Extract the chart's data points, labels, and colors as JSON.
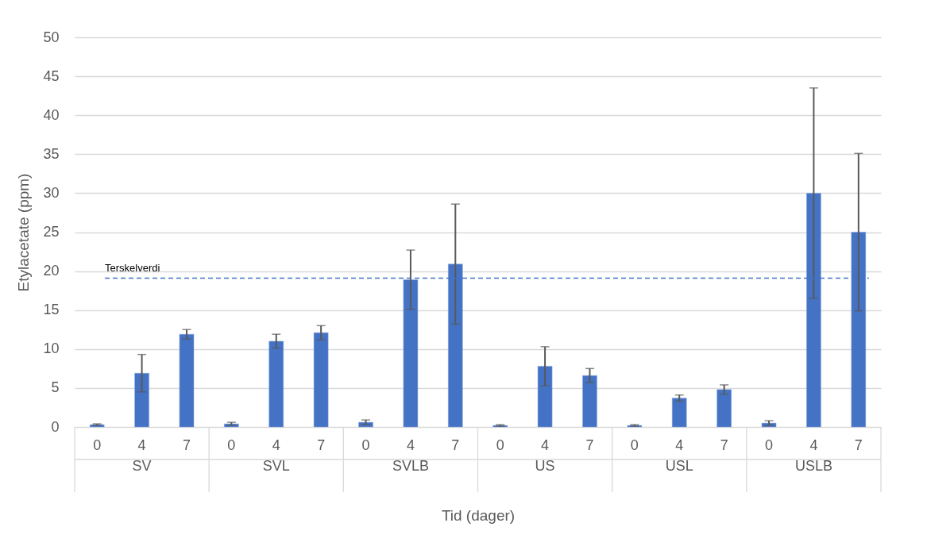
{
  "chart_data": {
    "type": "bar",
    "categories": [
      "0",
      "4",
      "7",
      "0",
      "4",
      "7",
      "0",
      "4",
      "7",
      "0",
      "4",
      "7",
      "0",
      "4",
      "7",
      "0",
      "4",
      "7"
    ],
    "values": [
      0.3,
      6.9,
      11.9,
      0.4,
      11.0,
      12.1,
      0.6,
      18.9,
      20.9,
      0.2,
      7.8,
      6.6,
      0.2,
      3.7,
      4.8,
      0.5,
      30.0,
      25.0
    ],
    "errors": [
      0.1,
      2.4,
      0.6,
      0.2,
      0.9,
      0.9,
      0.3,
      3.8,
      7.7,
      0.1,
      2.5,
      0.9,
      0.1,
      0.4,
      0.6,
      0.3,
      13.5,
      10.1
    ],
    "color": "#4472c4",
    "xlabel": "Tid (dager)",
    "ylabel": "Etylacetate (ppm)",
    "annotations": [
      "SV",
      "SVL",
      "SVLB",
      "US",
      "USL",
      "USLB"
    ],
    "ylim": [
      0,
      50
    ],
    "yticks": [
      0,
      5,
      10,
      15,
      20,
      25,
      30,
      35,
      40,
      45,
      50
    ],
    "grid": "y",
    "ref_lines": [
      {
        "axis": "y",
        "value": 19.1,
        "label": "Terskelverdi",
        "color": "#4472c4",
        "line_style": "dashed"
      }
    ]
  }
}
